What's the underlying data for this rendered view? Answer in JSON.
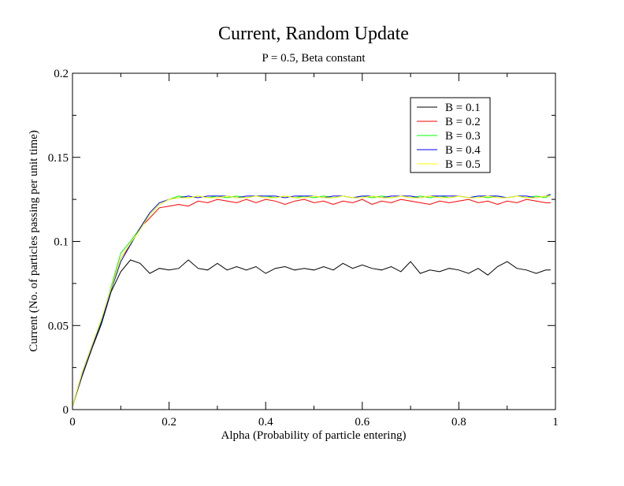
{
  "chart_data": {
    "type": "line",
    "title": "Current, Random Update",
    "subtitle": "P = 0.5, Beta constant",
    "xlabel": "Alpha (Probability of particle entering)",
    "ylabel": "Current (No. of particles passing per unit time)",
    "xlim": [
      0,
      1
    ],
    "ylim": [
      0,
      0.2
    ],
    "x_ticks": [
      "0",
      "0.2",
      "0.4",
      "0.6",
      "0.8",
      "1"
    ],
    "y_ticks": [
      "0",
      "0.05",
      "0.1",
      "0.15",
      "0.2"
    ],
    "grid": false,
    "legend_position": "top-right",
    "x": [
      0,
      0.02,
      0.04,
      0.06,
      0.08,
      0.1,
      0.12,
      0.14,
      0.16,
      0.18,
      0.2,
      0.22,
      0.24,
      0.26,
      0.28,
      0.3,
      0.32,
      0.34,
      0.36,
      0.38,
      0.4,
      0.42,
      0.44,
      0.46,
      0.48,
      0.5,
      0.52,
      0.54,
      0.56,
      0.58,
      0.6,
      0.62,
      0.64,
      0.66,
      0.68,
      0.7,
      0.72,
      0.74,
      0.76,
      0.78,
      0.8,
      0.82,
      0.84,
      0.86,
      0.88,
      0.9,
      0.92,
      0.94,
      0.96,
      0.98,
      0.99
    ],
    "series": [
      {
        "name": "B = 0.1",
        "color": "#000000",
        "values": [
          0.002,
          0.02,
          0.036,
          0.051,
          0.07,
          0.082,
          0.089,
          0.087,
          0.081,
          0.084,
          0.083,
          0.084,
          0.089,
          0.084,
          0.083,
          0.087,
          0.083,
          0.085,
          0.083,
          0.085,
          0.081,
          0.084,
          0.085,
          0.083,
          0.084,
          0.083,
          0.085,
          0.083,
          0.087,
          0.084,
          0.086,
          0.084,
          0.083,
          0.085,
          0.082,
          0.088,
          0.081,
          0.083,
          0.082,
          0.084,
          0.083,
          0.081,
          0.084,
          0.08,
          0.085,
          0.088,
          0.084,
          0.083,
          0.081,
          0.083,
          0.083
        ]
      },
      {
        "name": "B = 0.2",
        "color": "#ff0000",
        "values": [
          0.002,
          0.022,
          0.038,
          0.053,
          0.072,
          0.09,
          0.098,
          0.108,
          0.114,
          0.12,
          0.121,
          0.122,
          0.121,
          0.124,
          0.123,
          0.125,
          0.124,
          0.123,
          0.125,
          0.123,
          0.125,
          0.124,
          0.122,
          0.124,
          0.125,
          0.123,
          0.124,
          0.122,
          0.124,
          0.123,
          0.125,
          0.122,
          0.124,
          0.123,
          0.125,
          0.124,
          0.123,
          0.122,
          0.124,
          0.123,
          0.124,
          0.125,
          0.123,
          0.124,
          0.122,
          0.124,
          0.123,
          0.125,
          0.124,
          0.123,
          0.123
        ]
      },
      {
        "name": "B = 0.3",
        "color": "#00ff00",
        "values": [
          0.002,
          0.021,
          0.037,
          0.053,
          0.073,
          0.093,
          0.1,
          0.108,
          0.116,
          0.122,
          0.125,
          0.127,
          0.126,
          0.127,
          0.126,
          0.127,
          0.126,
          0.127,
          0.126,
          0.127,
          0.127,
          0.126,
          0.127,
          0.126,
          0.127,
          0.126,
          0.127,
          0.126,
          0.127,
          0.126,
          0.127,
          0.126,
          0.127,
          0.126,
          0.127,
          0.126,
          0.127,
          0.126,
          0.127,
          0.126,
          0.127,
          0.126,
          0.127,
          0.126,
          0.127,
          0.126,
          0.127,
          0.126,
          0.127,
          0.126,
          0.128
        ]
      },
      {
        "name": "B = 0.4",
        "color": "#0000ff",
        "values": [
          0.002,
          0.021,
          0.037,
          0.052,
          0.071,
          0.088,
          0.098,
          0.108,
          0.117,
          0.123,
          0.125,
          0.126,
          0.127,
          0.126,
          0.127,
          0.127,
          0.127,
          0.126,
          0.127,
          0.127,
          0.127,
          0.127,
          0.126,
          0.127,
          0.127,
          0.127,
          0.126,
          0.127,
          0.127,
          0.126,
          0.127,
          0.127,
          0.126,
          0.127,
          0.127,
          0.127,
          0.126,
          0.127,
          0.127,
          0.127,
          0.127,
          0.126,
          0.127,
          0.127,
          0.127,
          0.126,
          0.127,
          0.127,
          0.126,
          0.127,
          0.128
        ]
      },
      {
        "name": "B = 0.5",
        "color": "#ffff00",
        "values": [
          0.002,
          0.022,
          0.038,
          0.054,
          0.072,
          0.09,
          0.099,
          0.107,
          0.116,
          0.122,
          0.125,
          0.126,
          0.126,
          0.127,
          0.126,
          0.126,
          0.127,
          0.126,
          0.126,
          0.127,
          0.126,
          0.126,
          0.127,
          0.126,
          0.126,
          0.127,
          0.126,
          0.126,
          0.127,
          0.126,
          0.126,
          0.127,
          0.126,
          0.126,
          0.127,
          0.126,
          0.126,
          0.127,
          0.126,
          0.126,
          0.127,
          0.126,
          0.126,
          0.127,
          0.126,
          0.126,
          0.127,
          0.126,
          0.126,
          0.127,
          0.127
        ]
      }
    ]
  }
}
